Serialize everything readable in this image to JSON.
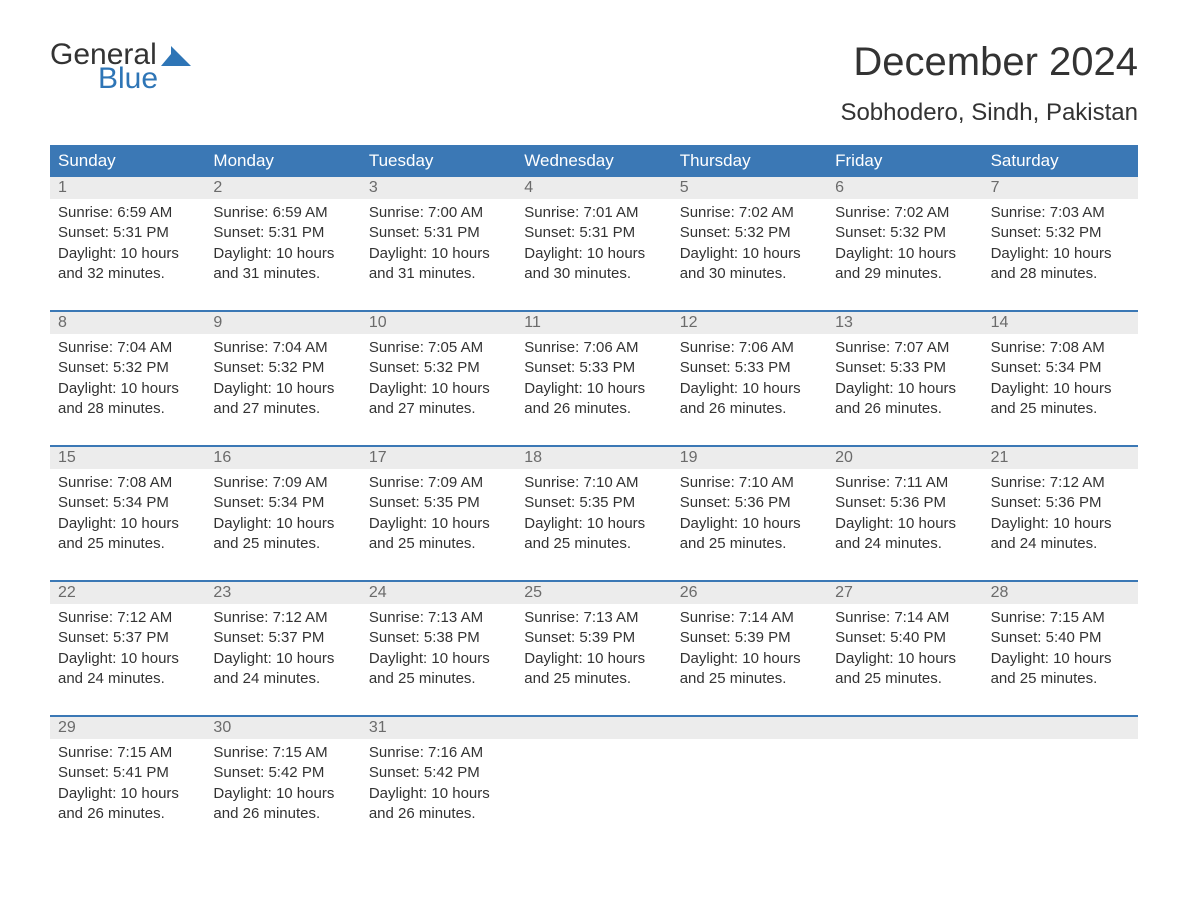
{
  "logo": {
    "text1": "General",
    "text2": "Blue",
    "mark_color": "#2e75b6"
  },
  "title": "December 2024",
  "location": "Sobhodero, Sindh, Pakistan",
  "colors": {
    "header_bg": "#3b78b5",
    "header_text": "#ffffff",
    "daynum_bg": "#ececec",
    "daynum_text": "#6b6b6b",
    "body_text": "#333333",
    "divider": "#3b78b5",
    "background": "#ffffff"
  },
  "weekdays": [
    "Sunday",
    "Monday",
    "Tuesday",
    "Wednesday",
    "Thursday",
    "Friday",
    "Saturday"
  ],
  "weeks": [
    [
      {
        "n": "1",
        "sunrise": "Sunrise: 6:59 AM",
        "sunset": "Sunset: 5:31 PM",
        "day1": "Daylight: 10 hours",
        "day2": "and 32 minutes."
      },
      {
        "n": "2",
        "sunrise": "Sunrise: 6:59 AM",
        "sunset": "Sunset: 5:31 PM",
        "day1": "Daylight: 10 hours",
        "day2": "and 31 minutes."
      },
      {
        "n": "3",
        "sunrise": "Sunrise: 7:00 AM",
        "sunset": "Sunset: 5:31 PM",
        "day1": "Daylight: 10 hours",
        "day2": "and 31 minutes."
      },
      {
        "n": "4",
        "sunrise": "Sunrise: 7:01 AM",
        "sunset": "Sunset: 5:31 PM",
        "day1": "Daylight: 10 hours",
        "day2": "and 30 minutes."
      },
      {
        "n": "5",
        "sunrise": "Sunrise: 7:02 AM",
        "sunset": "Sunset: 5:32 PM",
        "day1": "Daylight: 10 hours",
        "day2": "and 30 minutes."
      },
      {
        "n": "6",
        "sunrise": "Sunrise: 7:02 AM",
        "sunset": "Sunset: 5:32 PM",
        "day1": "Daylight: 10 hours",
        "day2": "and 29 minutes."
      },
      {
        "n": "7",
        "sunrise": "Sunrise: 7:03 AM",
        "sunset": "Sunset: 5:32 PM",
        "day1": "Daylight: 10 hours",
        "day2": "and 28 minutes."
      }
    ],
    [
      {
        "n": "8",
        "sunrise": "Sunrise: 7:04 AM",
        "sunset": "Sunset: 5:32 PM",
        "day1": "Daylight: 10 hours",
        "day2": "and 28 minutes."
      },
      {
        "n": "9",
        "sunrise": "Sunrise: 7:04 AM",
        "sunset": "Sunset: 5:32 PM",
        "day1": "Daylight: 10 hours",
        "day2": "and 27 minutes."
      },
      {
        "n": "10",
        "sunrise": "Sunrise: 7:05 AM",
        "sunset": "Sunset: 5:32 PM",
        "day1": "Daylight: 10 hours",
        "day2": "and 27 minutes."
      },
      {
        "n": "11",
        "sunrise": "Sunrise: 7:06 AM",
        "sunset": "Sunset: 5:33 PM",
        "day1": "Daylight: 10 hours",
        "day2": "and 26 minutes."
      },
      {
        "n": "12",
        "sunrise": "Sunrise: 7:06 AM",
        "sunset": "Sunset: 5:33 PM",
        "day1": "Daylight: 10 hours",
        "day2": "and 26 minutes."
      },
      {
        "n": "13",
        "sunrise": "Sunrise: 7:07 AM",
        "sunset": "Sunset: 5:33 PM",
        "day1": "Daylight: 10 hours",
        "day2": "and 26 minutes."
      },
      {
        "n": "14",
        "sunrise": "Sunrise: 7:08 AM",
        "sunset": "Sunset: 5:34 PM",
        "day1": "Daylight: 10 hours",
        "day2": "and 25 minutes."
      }
    ],
    [
      {
        "n": "15",
        "sunrise": "Sunrise: 7:08 AM",
        "sunset": "Sunset: 5:34 PM",
        "day1": "Daylight: 10 hours",
        "day2": "and 25 minutes."
      },
      {
        "n": "16",
        "sunrise": "Sunrise: 7:09 AM",
        "sunset": "Sunset: 5:34 PM",
        "day1": "Daylight: 10 hours",
        "day2": "and 25 minutes."
      },
      {
        "n": "17",
        "sunrise": "Sunrise: 7:09 AM",
        "sunset": "Sunset: 5:35 PM",
        "day1": "Daylight: 10 hours",
        "day2": "and 25 minutes."
      },
      {
        "n": "18",
        "sunrise": "Sunrise: 7:10 AM",
        "sunset": "Sunset: 5:35 PM",
        "day1": "Daylight: 10 hours",
        "day2": "and 25 minutes."
      },
      {
        "n": "19",
        "sunrise": "Sunrise: 7:10 AM",
        "sunset": "Sunset: 5:36 PM",
        "day1": "Daylight: 10 hours",
        "day2": "and 25 minutes."
      },
      {
        "n": "20",
        "sunrise": "Sunrise: 7:11 AM",
        "sunset": "Sunset: 5:36 PM",
        "day1": "Daylight: 10 hours",
        "day2": "and 24 minutes."
      },
      {
        "n": "21",
        "sunrise": "Sunrise: 7:12 AM",
        "sunset": "Sunset: 5:36 PM",
        "day1": "Daylight: 10 hours",
        "day2": "and 24 minutes."
      }
    ],
    [
      {
        "n": "22",
        "sunrise": "Sunrise: 7:12 AM",
        "sunset": "Sunset: 5:37 PM",
        "day1": "Daylight: 10 hours",
        "day2": "and 24 minutes."
      },
      {
        "n": "23",
        "sunrise": "Sunrise: 7:12 AM",
        "sunset": "Sunset: 5:37 PM",
        "day1": "Daylight: 10 hours",
        "day2": "and 24 minutes."
      },
      {
        "n": "24",
        "sunrise": "Sunrise: 7:13 AM",
        "sunset": "Sunset: 5:38 PM",
        "day1": "Daylight: 10 hours",
        "day2": "and 25 minutes."
      },
      {
        "n": "25",
        "sunrise": "Sunrise: 7:13 AM",
        "sunset": "Sunset: 5:39 PM",
        "day1": "Daylight: 10 hours",
        "day2": "and 25 minutes."
      },
      {
        "n": "26",
        "sunrise": "Sunrise: 7:14 AM",
        "sunset": "Sunset: 5:39 PM",
        "day1": "Daylight: 10 hours",
        "day2": "and 25 minutes."
      },
      {
        "n": "27",
        "sunrise": "Sunrise: 7:14 AM",
        "sunset": "Sunset: 5:40 PM",
        "day1": "Daylight: 10 hours",
        "day2": "and 25 minutes."
      },
      {
        "n": "28",
        "sunrise": "Sunrise: 7:15 AM",
        "sunset": "Sunset: 5:40 PM",
        "day1": "Daylight: 10 hours",
        "day2": "and 25 minutes."
      }
    ],
    [
      {
        "n": "29",
        "sunrise": "Sunrise: 7:15 AM",
        "sunset": "Sunset: 5:41 PM",
        "day1": "Daylight: 10 hours",
        "day2": "and 26 minutes."
      },
      {
        "n": "30",
        "sunrise": "Sunrise: 7:15 AM",
        "sunset": "Sunset: 5:42 PM",
        "day1": "Daylight: 10 hours",
        "day2": "and 26 minutes."
      },
      {
        "n": "31",
        "sunrise": "Sunrise: 7:16 AM",
        "sunset": "Sunset: 5:42 PM",
        "day1": "Daylight: 10 hours",
        "day2": "and 26 minutes."
      },
      null,
      null,
      null,
      null
    ]
  ]
}
